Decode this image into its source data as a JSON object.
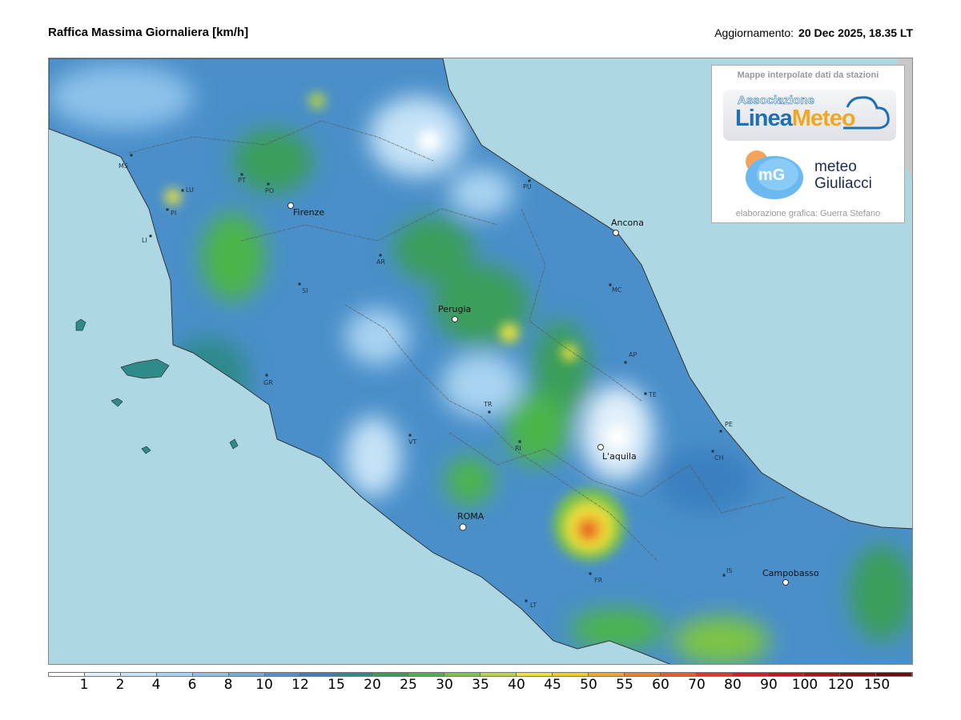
{
  "header": {
    "title": "Raffica Massima Giornaliera [km/h]",
    "update_label": "Aggiornamento:",
    "update_value": "20 Dec 2025, 18.35 LT"
  },
  "credits": {
    "heading": "Mappe interpolate dati da stazioni",
    "logo1_small": "Associazione",
    "logo1_a": "Linea",
    "logo1_b": "Meteo",
    "logo2_line1": "meteo",
    "logo2_line2": "Giuliacci",
    "logo2_mark": "mG",
    "footer": "elaborazione grafica: Guerra Stefano"
  },
  "colors": {
    "sea": "#acd7e3",
    "land_base": "#4a8fc9",
    "border": "#555555"
  },
  "cities": [
    {
      "name": "Firenze"
    },
    {
      "name": "Ancona"
    },
    {
      "name": "Perugia"
    },
    {
      "name": "ROMA"
    },
    {
      "name": "L'aquila"
    },
    {
      "name": "Campobasso"
    }
  ],
  "provinces": [
    "MS",
    "LU",
    "PT",
    "PO",
    "PI",
    "LI",
    "AR",
    "SI",
    "GR",
    "PU",
    "MC",
    "AP",
    "TE",
    "PE",
    "CH",
    "TR",
    "RI",
    "VT",
    "FR",
    "LT",
    "IS"
  ],
  "colorbar": {
    "labels": [
      "1",
      "2",
      "4",
      "6",
      "8",
      "10",
      "12",
      "15",
      "20",
      "25",
      "30",
      "35",
      "40",
      "45",
      "50",
      "55",
      "60",
      "70",
      "80",
      "90",
      "100",
      "120",
      "150"
    ],
    "colors": [
      "#ffffff",
      "#e1f0fb",
      "#c6e3f7",
      "#a9d3f1",
      "#8cc1ea",
      "#6eabe0",
      "#4f93d4",
      "#3a7fbf",
      "#2f8a8a",
      "#3a9e5a",
      "#4bb548",
      "#7cc545",
      "#b8d640",
      "#ebe33c",
      "#f5c733",
      "#f3a52b",
      "#ef8226",
      "#e85d22",
      "#e03a20",
      "#d0211f",
      "#bc1a1c",
      "#a51418",
      "#8c0e14",
      "#720a10"
    ]
  }
}
